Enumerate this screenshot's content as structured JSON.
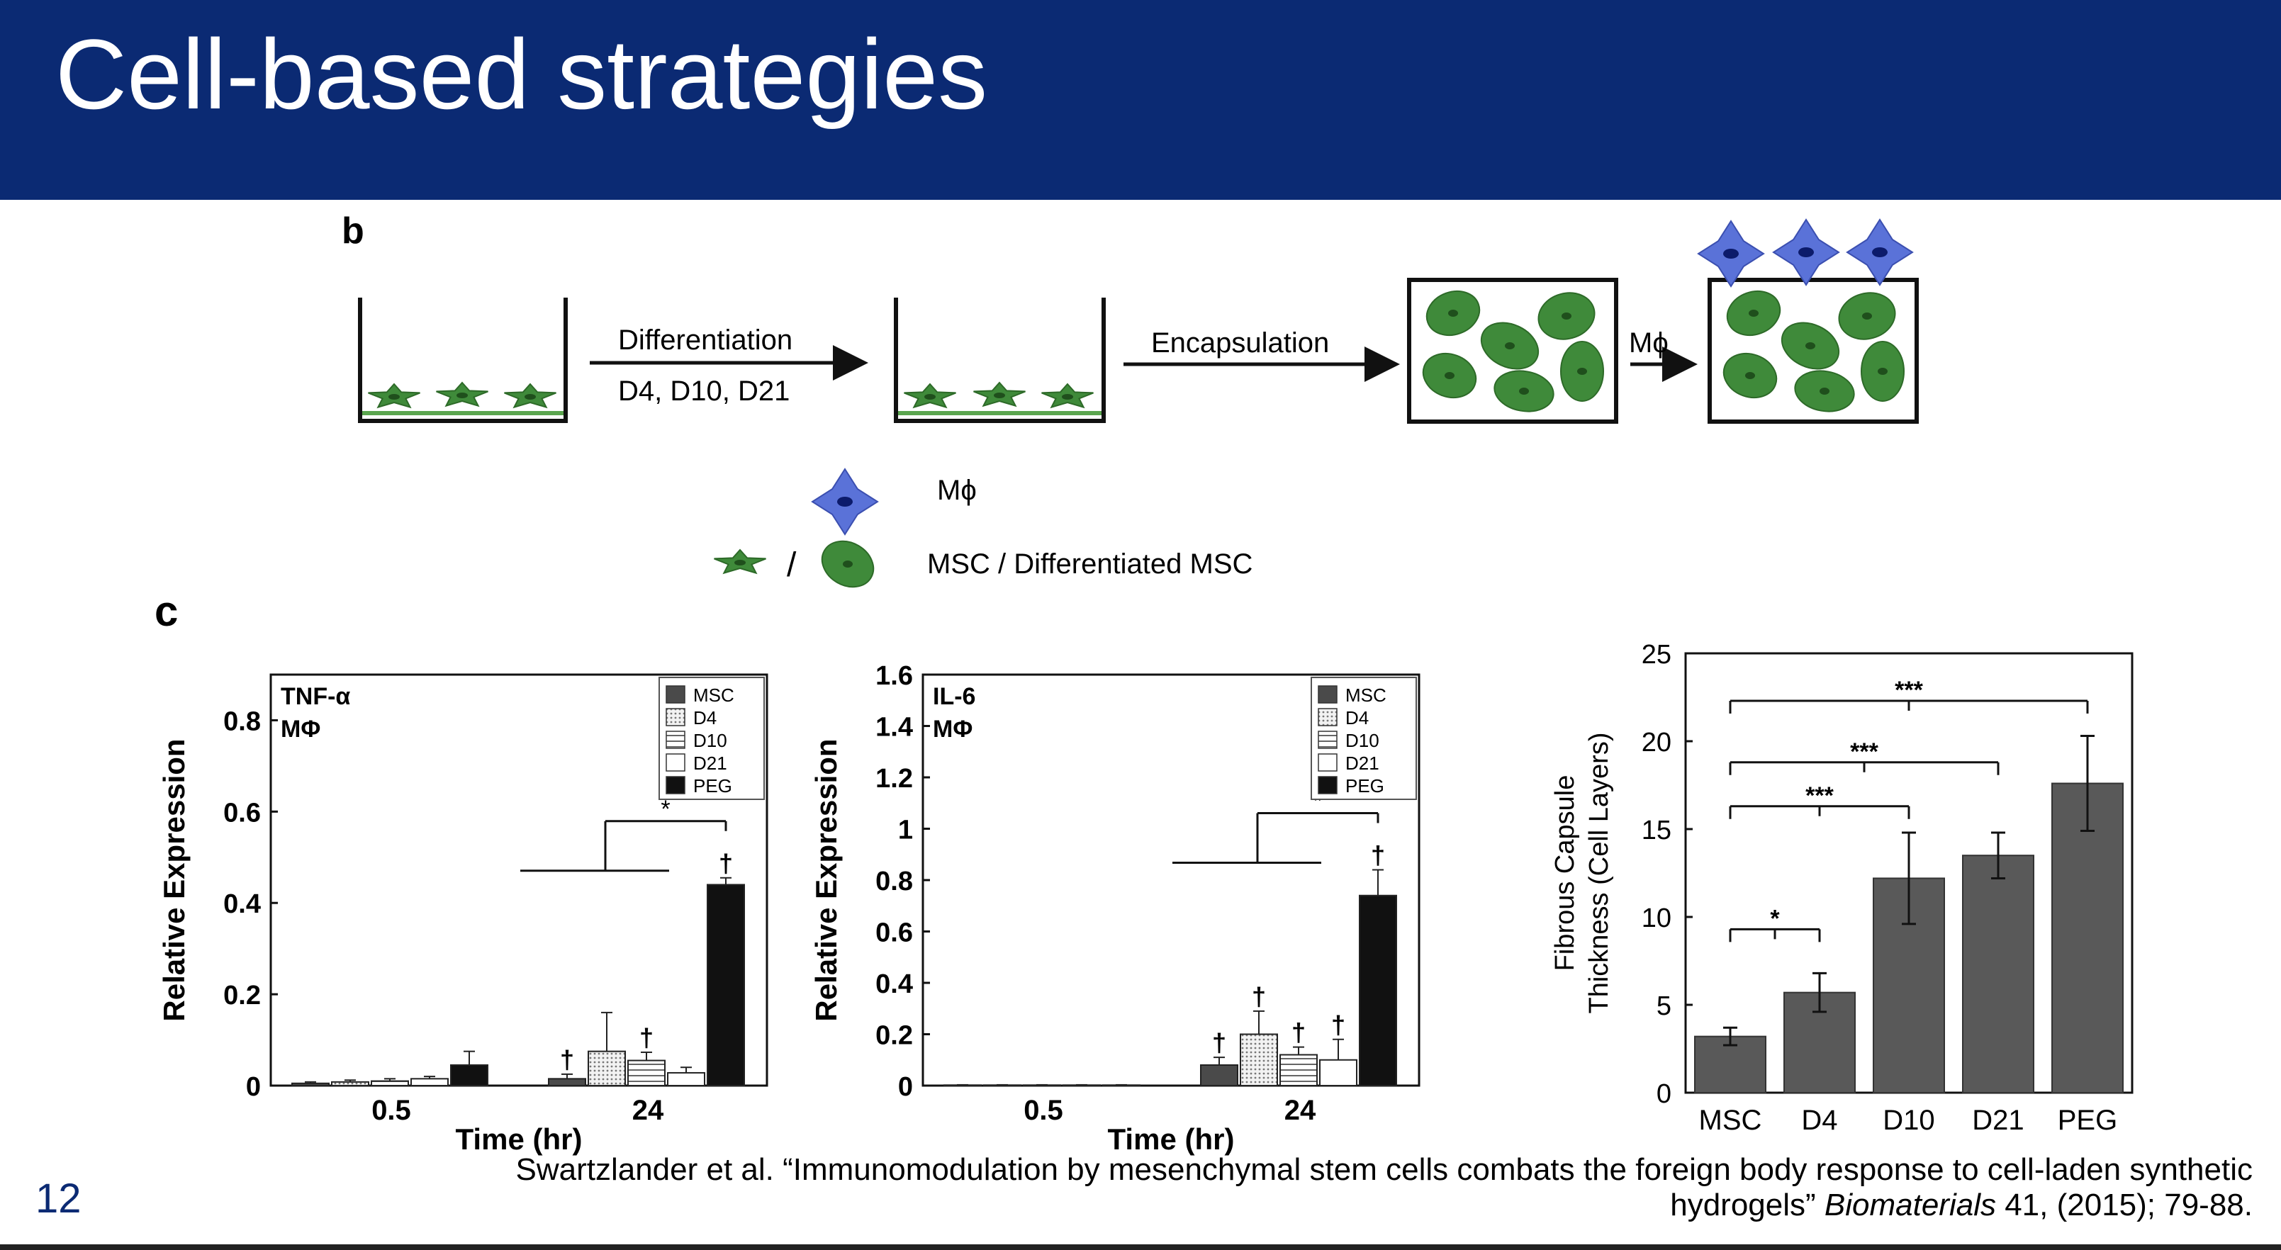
{
  "slide": {
    "title": "Cell-based strategies",
    "page_number": "12",
    "colors": {
      "header_bg": "#0b2a73",
      "header_text": "#ffffff",
      "cell_green": "#3f8a3a",
      "macrophage_blue": "#5a72d8"
    },
    "citation_line1": "Swartzlander et al. “Immunomodulation by mesenchymal stem cells combats the foreign body response to cell-laden synthetic",
    "citation_line2_pre": "hydrogels” ",
    "citation_journal": "Biomaterials",
    "citation_line2_post": " 41, (2015); 79-88."
  },
  "panel_b": {
    "label": "b",
    "step1_top": "Differentiation",
    "step1_bottom": "D4, D10, D21",
    "step2": "Encapsulation",
    "step3": "Mϕ",
    "legend_macrophage": "Mϕ",
    "legend_slash": "/",
    "legend_msc": "MSC / Differentiated MSC"
  },
  "panel_c_label": "c",
  "chart_data": [
    {
      "type": "bar",
      "panel_title": "TNF-α",
      "panel_subtitle": "MΦ",
      "ylabel": "Relative Expression",
      "xlabel": "Time (hr)",
      "categories": [
        "0.5",
        "24"
      ],
      "ylim": [
        0,
        0.9
      ],
      "yticks": [
        "0",
        "0.2",
        "0.4",
        "0.6",
        "0.8"
      ],
      "legend_position": "top-right",
      "series": [
        {
          "name": "MSC",
          "values": [
            0.005,
            0.015
          ],
          "errors": [
            0.003,
            0.01
          ],
          "marks": [
            "",
            "†"
          ]
        },
        {
          "name": "D4",
          "values": [
            0.008,
            0.075
          ],
          "errors": [
            0.004,
            0.085
          ],
          "marks": [
            "",
            ""
          ]
        },
        {
          "name": "D10",
          "values": [
            0.01,
            0.055
          ],
          "errors": [
            0.005,
            0.018
          ],
          "marks": [
            "",
            "†"
          ]
        },
        {
          "name": "D21",
          "values": [
            0.015,
            0.028
          ],
          "errors": [
            0.005,
            0.012
          ],
          "marks": [
            "",
            ""
          ]
        },
        {
          "name": "PEG",
          "values": [
            0.045,
            0.44
          ],
          "errors": [
            0.03,
            0.015
          ],
          "marks": [
            "",
            "†"
          ]
        }
      ],
      "significance": "*"
    },
    {
      "type": "bar",
      "panel_title": "IL-6",
      "panel_subtitle": "MΦ",
      "ylabel": "Relative Expression",
      "xlabel": "Time (hr)",
      "categories": [
        "0.5",
        "24"
      ],
      "ylim": [
        0,
        1.6
      ],
      "yticks": [
        "0",
        "0.2",
        "0.4",
        "0.6",
        "0.8",
        "1",
        "1.2",
        "1.4",
        "1.6"
      ],
      "legend_position": "top-right",
      "series": [
        {
          "name": "MSC",
          "values": [
            0.002,
            0.08
          ],
          "errors": [
            0.001,
            0.03
          ],
          "marks": [
            "",
            "†"
          ]
        },
        {
          "name": "D4",
          "values": [
            0.002,
            0.2
          ],
          "errors": [
            0.001,
            0.09
          ],
          "marks": [
            "",
            "†"
          ]
        },
        {
          "name": "D10",
          "values": [
            0.002,
            0.12
          ],
          "errors": [
            0.001,
            0.03
          ],
          "marks": [
            "",
            "†"
          ]
        },
        {
          "name": "D21",
          "values": [
            0.002,
            0.1
          ],
          "errors": [
            0.001,
            0.08
          ],
          "marks": [
            "",
            "†"
          ]
        },
        {
          "name": "PEG",
          "values": [
            0.002,
            0.74
          ],
          "errors": [
            0.001,
            0.1
          ],
          "marks": [
            "",
            "†"
          ]
        }
      ],
      "significance": "*"
    },
    {
      "type": "bar",
      "ylabel_line1": "Fibrous Capsule",
      "ylabel_line2": "Thickness (Cell Layers)",
      "categories": [
        "MSC",
        "D4",
        "D10",
        "D21",
        "PEG"
      ],
      "values": [
        3.2,
        5.7,
        12.2,
        13.5,
        17.6
      ],
      "errors": [
        0.5,
        1.1,
        2.6,
        1.3,
        2.7
      ],
      "ylim": [
        0,
        25
      ],
      "yticks": [
        "0",
        "5",
        "10",
        "15",
        "20",
        "25"
      ],
      "color": "#595959",
      "comparisons": [
        {
          "from": "MSC",
          "to": "D4",
          "label": "*"
        },
        {
          "from": "MSC",
          "to": "D10",
          "label": "***"
        },
        {
          "from": "MSC",
          "to": "D21",
          "label": "***"
        },
        {
          "from": "MSC",
          "to": "PEG",
          "label": "***"
        }
      ]
    }
  ]
}
